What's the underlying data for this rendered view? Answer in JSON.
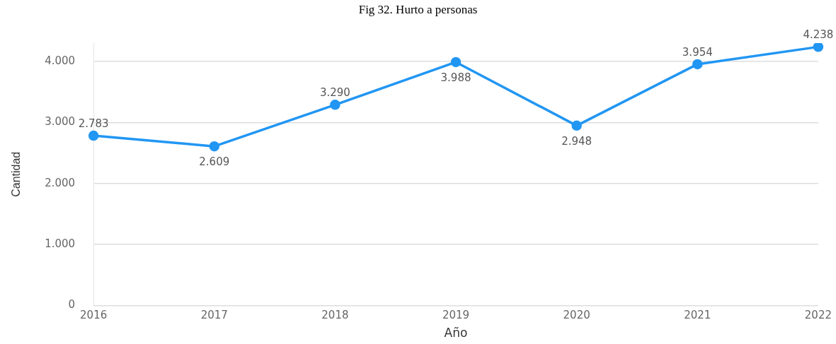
{
  "chart_data": {
    "type": "line",
    "title": "Fig 32. Hurto a personas",
    "xlabel": "Año",
    "ylabel": "Cantidad",
    "categories": [
      "2016",
      "2017",
      "2018",
      "2019",
      "2020",
      "2021",
      "2022"
    ],
    "series": [
      {
        "color": "#2196f3",
        "values": [
          2783,
          2609,
          3290,
          3988,
          2948,
          3954,
          4238
        ],
        "value_labels": [
          "2.783",
          "2.609",
          "3.290",
          "3.988",
          "2.948",
          "3.954",
          "4.238"
        ]
      }
    ],
    "ylim": [
      0,
      4300
    ],
    "yticks": [
      {
        "value": 0,
        "label": "0"
      },
      {
        "value": 1000,
        "label": "1.000"
      },
      {
        "value": 2000,
        "label": "2.000"
      },
      {
        "value": 3000,
        "label": "3.000"
      },
      {
        "value": 4000,
        "label": "4.000"
      }
    ],
    "grid": "y",
    "legend": false,
    "marker": "circle",
    "line_style": "solid"
  }
}
